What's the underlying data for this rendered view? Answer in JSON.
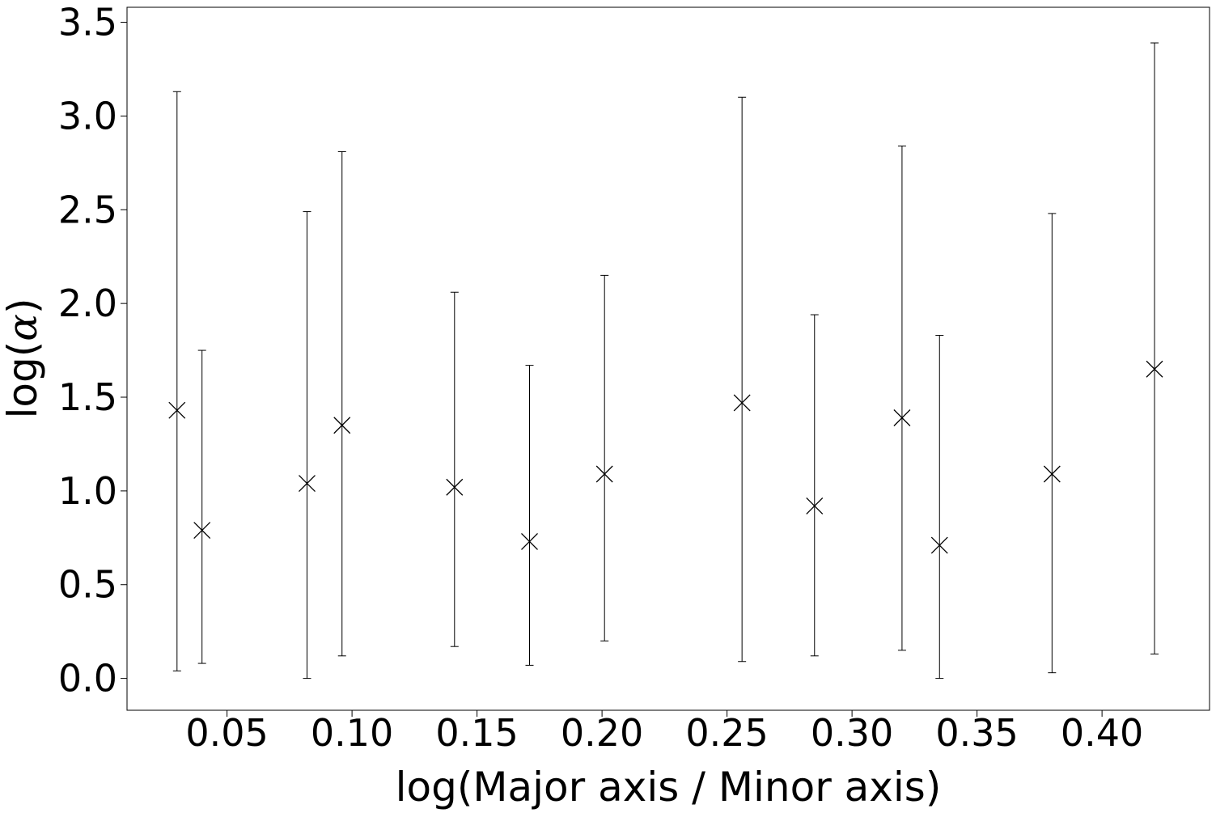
{
  "chart_data": {
    "type": "scatter",
    "title": "",
    "xlabel": "log(Major axis / Minor axis)",
    "ylabel_prefix": "log(",
    "ylabel_symbol": "α",
    "ylabel_suffix": ")",
    "xlim": [
      0.01,
      0.443
    ],
    "ylim": [
      -0.17,
      3.58
    ],
    "xticks": [
      0.05,
      0.1,
      0.15,
      0.2,
      0.25,
      0.3,
      0.35,
      0.4
    ],
    "xtick_labels": [
      "0.05",
      "0.10",
      "0.15",
      "0.20",
      "0.25",
      "0.30",
      "0.35",
      "0.40"
    ],
    "yticks": [
      0.0,
      0.5,
      1.0,
      1.5,
      2.0,
      2.5,
      3.0,
      3.5
    ],
    "ytick_labels": [
      "0.0",
      "0.5",
      "1.0",
      "1.5",
      "2.0",
      "2.5",
      "3.0",
      "3.5"
    ],
    "grid": false,
    "legend": "none",
    "marker": "x",
    "color": "#000000",
    "series": [
      {
        "x": [
          0.03,
          0.04,
          0.082,
          0.096,
          0.141,
          0.171,
          0.201,
          0.256,
          0.285,
          0.32,
          0.335,
          0.38,
          0.421
        ],
        "y": [
          1.43,
          0.79,
          1.04,
          1.35,
          1.02,
          0.73,
          1.09,
          1.47,
          0.92,
          1.39,
          0.71,
          1.09,
          1.65
        ],
        "y_lower": [
          0.04,
          0.08,
          0.0,
          0.12,
          0.17,
          0.07,
          0.2,
          0.09,
          0.12,
          0.15,
          0.0,
          0.03,
          0.13
        ],
        "y_upper": [
          3.13,
          1.75,
          2.49,
          2.81,
          2.06,
          1.67,
          2.15,
          3.1,
          1.94,
          2.84,
          1.83,
          2.48,
          3.39
        ]
      }
    ]
  }
}
